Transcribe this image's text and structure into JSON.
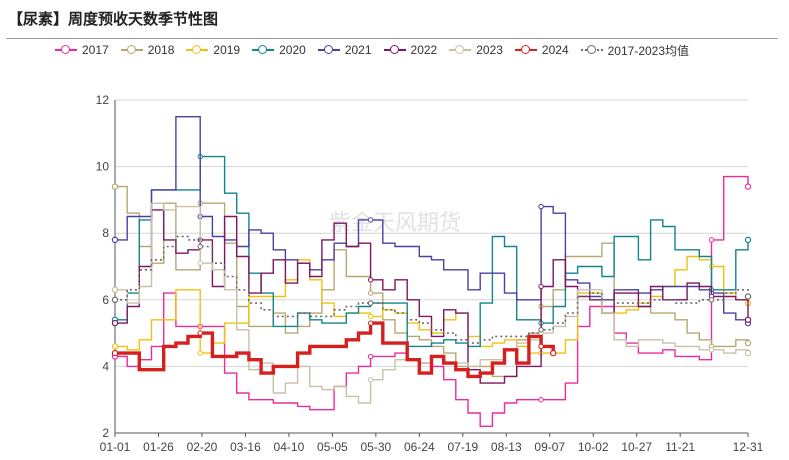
{
  "title": "【尿素】周度预收天数季节性图",
  "watermark": "紫金天风期货",
  "chart_data": {
    "type": "line",
    "title": "【尿素】周度预收天数季节性图",
    "xlabel": "",
    "ylabel": "",
    "ylim": [
      2,
      12
    ],
    "yticks": [
      2,
      4,
      6,
      8,
      10,
      12
    ],
    "x_categories": [
      "01-01",
      "01-26",
      "02-20",
      "03-16",
      "04-10",
      "05-05",
      "05-30",
      "06-24",
      "07-19",
      "08-13",
      "09-07",
      "10-02",
      "10-27",
      "11-21",
      "12-31"
    ],
    "x_note": "x values are day-of-year (Jan 1 = 0, Dec 31 = 364)",
    "series": [
      {
        "name": "2017",
        "color": "#ee2a9c",
        "width": 1.4,
        "dash": false,
        "x": [
          0,
          7,
          14,
          21,
          28,
          35,
          42,
          49,
          56,
          63,
          70,
          77,
          84,
          91,
          98,
          105,
          112,
          119,
          126,
          133,
          140,
          147,
          154,
          161,
          168,
          175,
          182,
          189,
          196,
          203,
          210,
          217,
          224,
          231,
          238,
          245,
          252,
          259,
          266,
          273,
          280,
          287,
          294,
          301,
          308,
          315,
          322,
          329,
          336,
          343,
          350,
          357,
          364
        ],
        "y": [
          4.3,
          4.0,
          4.2,
          4.6,
          6.2,
          5.2,
          5.2,
          5.2,
          5.2,
          3.8,
          3.2,
          3.0,
          3.0,
          2.9,
          2.9,
          2.8,
          2.7,
          2.7,
          3.4,
          3.8,
          4.0,
          4.3,
          4.3,
          4.4,
          4.2,
          4.1,
          4.0,
          3.6,
          3.0,
          2.6,
          2.2,
          2.6,
          2.9,
          3.0,
          3.0,
          3.0,
          3.0,
          3.5,
          5.2,
          5.8,
          5.8,
          5.0,
          4.7,
          4.4,
          4.4,
          4.5,
          4.3,
          4.3,
          4.2,
          7.8,
          9.7,
          9.7,
          9.4
        ]
      },
      {
        "name": "2018",
        "color": "#b7a770",
        "width": 1.4,
        "dash": false,
        "x": [
          0,
          7,
          14,
          21,
          28,
          35,
          42,
          49,
          56,
          63,
          70,
          77,
          84,
          91,
          98,
          105,
          112,
          119,
          126,
          133,
          140,
          147,
          154,
          161,
          168,
          175,
          182,
          189,
          196,
          203,
          210,
          217,
          224,
          231,
          238,
          245,
          252,
          259,
          266,
          273,
          280,
          287,
          294,
          301,
          308,
          315,
          322,
          329,
          336,
          343,
          350,
          357,
          364
        ],
        "y": [
          9.4,
          8.6,
          7.6,
          7.1,
          8.9,
          6.9,
          6.9,
          8.9,
          8.9,
          7.7,
          5.8,
          5.2,
          5.2,
          5.6,
          5.0,
          5.2,
          5.6,
          6.3,
          7.5,
          6.7,
          6.7,
          6.2,
          5.4,
          5.0,
          4.9,
          4.8,
          4.6,
          4.4,
          4.0,
          4.0,
          4.0,
          3.7,
          3.7,
          4.8,
          5.0,
          5.8,
          6.3,
          7.3,
          7.3,
          7.3,
          7.7,
          5.8,
          5.8,
          5.8,
          5.6,
          5.6,
          5.4,
          5.0,
          4.8,
          4.6,
          4.6,
          4.8,
          4.7
        ]
      },
      {
        "name": "2019",
        "color": "#f0c20f",
        "width": 1.4,
        "dash": false,
        "x": [
          0,
          7,
          14,
          21,
          28,
          35,
          42,
          49,
          56,
          63,
          70,
          77,
          84,
          91,
          98,
          105,
          112,
          119,
          126,
          133,
          140,
          147,
          154,
          161,
          168,
          175,
          182,
          189,
          196,
          203,
          210,
          217,
          224,
          231,
          238,
          245,
          252,
          259,
          266,
          273,
          280,
          287,
          294,
          301,
          308,
          315,
          322,
          329,
          336,
          343,
          350,
          357,
          364
        ],
        "y": [
          4.6,
          4.5,
          4.8,
          5.4,
          5.4,
          6.3,
          6.3,
          4.4,
          4.7,
          5.3,
          5.3,
          6.1,
          6.1,
          6.1,
          6.6,
          7.2,
          6.6,
          5.9,
          5.5,
          5.6,
          5.6,
          5.5,
          5.7,
          5.6,
          5.3,
          5.1,
          5.0,
          5.4,
          5.6,
          4.9,
          4.6,
          4.7,
          4.8,
          4.6,
          4.4,
          4.4,
          4.4,
          4.8,
          6.2,
          6.2,
          5.6,
          5.6,
          5.7,
          5.9,
          6.1,
          6.4,
          6.9,
          7.3,
          7.2,
          7.0,
          6.2,
          6.0,
          5.9
        ]
      },
      {
        "name": "2020",
        "color": "#12868c",
        "width": 1.4,
        "dash": false,
        "x": [
          0,
          7,
          14,
          21,
          28,
          35,
          42,
          49,
          56,
          63,
          70,
          77,
          84,
          91,
          98,
          105,
          112,
          119,
          126,
          133,
          140,
          147,
          154,
          161,
          168,
          175,
          182,
          189,
          196,
          203,
          210,
          217,
          224,
          231,
          238,
          245,
          252,
          259,
          266,
          273,
          280,
          287,
          294,
          301,
          308,
          315,
          322,
          329,
          336,
          343,
          350,
          357,
          364
        ],
        "y": [
          5.4,
          6.2,
          8.4,
          9.3,
          9.3,
          9.3,
          9.3,
          10.3,
          10.3,
          9.2,
          8.6,
          6.8,
          6.2,
          5.2,
          5.2,
          5.6,
          5.4,
          5.3,
          5.3,
          5.6,
          5.8,
          5.9,
          5.9,
          5.9,
          4.6,
          4.6,
          4.7,
          4.8,
          4.7,
          4.6,
          5.9,
          7.9,
          7.6,
          5.4,
          5.4,
          5.3,
          5.8,
          6.8,
          7.0,
          7.0,
          6.7,
          7.9,
          7.9,
          7.2,
          8.4,
          8.2,
          7.5,
          7.5,
          7.3,
          6.3,
          6.3,
          7.5,
          7.8
        ]
      },
      {
        "name": "2021",
        "color": "#4d3fa2",
        "width": 1.4,
        "dash": false,
        "x": [
          0,
          7,
          14,
          21,
          28,
          35,
          42,
          49,
          56,
          63,
          70,
          77,
          84,
          91,
          98,
          105,
          112,
          119,
          126,
          133,
          140,
          147,
          154,
          161,
          168,
          175,
          182,
          189,
          196,
          203,
          210,
          217,
          224,
          231,
          238,
          245,
          252,
          259,
          266,
          273,
          280,
          287,
          294,
          301,
          308,
          315,
          322,
          329,
          336,
          343,
          350,
          357,
          364
        ],
        "y": [
          7.8,
          8.5,
          8.5,
          9.3,
          9.3,
          11.5,
          11.5,
          8.5,
          7.9,
          7.8,
          7.6,
          8.1,
          8.0,
          7.5,
          7.2,
          7.1,
          6.9,
          7.2,
          7.7,
          7.6,
          8.4,
          8.4,
          7.7,
          7.6,
          7.6,
          7.3,
          7.2,
          6.9,
          6.9,
          6.3,
          6.8,
          6.8,
          6.2,
          6.0,
          6.0,
          8.8,
          8.6,
          6.6,
          6.5,
          6.1,
          6.0,
          6.3,
          6.3,
          6.2,
          6.3,
          6.4,
          6.4,
          6.4,
          6.3,
          6.2,
          5.6,
          5.4,
          5.3
        ]
      },
      {
        "name": "2022",
        "color": "#7e1661",
        "width": 1.4,
        "dash": false,
        "x": [
          0,
          7,
          14,
          21,
          28,
          35,
          42,
          49,
          56,
          63,
          70,
          77,
          84,
          91,
          98,
          105,
          112,
          119,
          126,
          133,
          140,
          147,
          154,
          161,
          168,
          175,
          182,
          189,
          196,
          203,
          210,
          217,
          224,
          231,
          238,
          245,
          252,
          259,
          266,
          273,
          280,
          287,
          294,
          301,
          308,
          315,
          322,
          329,
          336,
          343,
          350,
          357,
          364
        ],
        "y": [
          5.3,
          5.8,
          7.0,
          8.7,
          7.8,
          7.4,
          7.5,
          7.8,
          6.4,
          8.5,
          7.3,
          6.2,
          6.8,
          7.2,
          6.5,
          7.1,
          6.7,
          7.8,
          8.3,
          7.6,
          7.7,
          6.6,
          6.3,
          6.6,
          6.0,
          5.5,
          4.9,
          5.7,
          5.6,
          3.9,
          3.5,
          3.5,
          3.7,
          4.0,
          4.0,
          6.4,
          7.2,
          6.4,
          6.1,
          6.0,
          5.6,
          6.2,
          6.2,
          5.8,
          6.4,
          6.0,
          6.0,
          6.5,
          6.4,
          6.1,
          6.1,
          6.0,
          5.4
        ]
      },
      {
        "name": "2023",
        "color": "#c9c0a8",
        "width": 1.4,
        "dash": false,
        "x": [
          0,
          7,
          14,
          21,
          28,
          35,
          42,
          49,
          56,
          63,
          70,
          77,
          84,
          91,
          98,
          105,
          112,
          119,
          126,
          133,
          140,
          147,
          154,
          161,
          168,
          175,
          182,
          189,
          196,
          203,
          210,
          217,
          224,
          231,
          238,
          245,
          252,
          259,
          266,
          273,
          280,
          287,
          294,
          301,
          308,
          315,
          322,
          329,
          336,
          343,
          350,
          357,
          364
        ],
        "y": [
          6.3,
          5.9,
          6.4,
          8.9,
          8.7,
          8.8,
          8.8,
          7.1,
          6.9,
          6.3,
          5.1,
          3.9,
          4.1,
          3.2,
          3.5,
          4.0,
          3.4,
          3.3,
          3.4,
          3.1,
          2.9,
          3.6,
          3.9,
          4.2,
          4.2,
          4.1,
          4.3,
          4.1,
          4.1,
          4.0,
          4.2,
          4.2,
          4.5,
          4.7,
          4.8,
          5.0,
          5.2,
          5.5,
          6.3,
          6.3,
          5.6,
          4.8,
          4.6,
          4.8,
          4.8,
          4.7,
          4.6,
          4.6,
          4.5,
          4.5,
          4.4,
          4.5,
          4.4
        ]
      },
      {
        "name": "2024",
        "color": "#d61f1f",
        "width": 3.4,
        "dash": false,
        "x": [
          0,
          7,
          14,
          21,
          28,
          35,
          42,
          49,
          56,
          63,
          70,
          77,
          84,
          91,
          98,
          105,
          112,
          119,
          126,
          133,
          140,
          147,
          154,
          161,
          168,
          175,
          182,
          189,
          196,
          203,
          210,
          217,
          224,
          231,
          238,
          245,
          252
        ],
        "y": [
          4.4,
          4.4,
          3.9,
          3.9,
          4.6,
          4.7,
          4.9,
          5.0,
          4.3,
          4.3,
          4.4,
          4.2,
          3.8,
          4.0,
          4.0,
          4.4,
          4.6,
          4.6,
          4.6,
          4.8,
          5.0,
          5.3,
          4.7,
          4.7,
          4.2,
          3.8,
          4.3,
          4.1,
          3.9,
          3.7,
          3.8,
          4.1,
          4.5,
          4.1,
          4.9,
          4.6,
          4.4
        ]
      },
      {
        "name": "2017-2023均值",
        "color": "#6b6b6b",
        "width": 1.6,
        "dash": true,
        "x": [
          0,
          7,
          14,
          21,
          28,
          35,
          42,
          49,
          56,
          63,
          70,
          77,
          84,
          91,
          98,
          105,
          112,
          119,
          126,
          133,
          140,
          147,
          154,
          161,
          168,
          175,
          182,
          189,
          196,
          203,
          210,
          217,
          224,
          231,
          238,
          245,
          252,
          259,
          266,
          273,
          280,
          287,
          294,
          301,
          308,
          315,
          322,
          329,
          336,
          343,
          350,
          357,
          364
        ],
        "y": [
          6.0,
          6.3,
          6.9,
          7.2,
          7.6,
          7.9,
          7.8,
          7.6,
          7.1,
          6.7,
          6.3,
          5.9,
          5.7,
          5.5,
          5.5,
          5.6,
          5.5,
          5.5,
          5.7,
          5.8,
          5.9,
          5.9,
          5.7,
          5.6,
          5.4,
          5.3,
          5.1,
          5.0,
          4.8,
          4.7,
          4.8,
          4.9,
          4.9,
          4.9,
          5.0,
          5.1,
          5.3,
          5.6,
          6.1,
          6.2,
          6.0,
          5.9,
          5.9,
          5.9,
          6.0,
          6.0,
          5.9,
          5.9,
          6.0,
          6.0,
          6.2,
          6.3,
          6.1
        ]
      }
    ],
    "legend": {
      "position": "top",
      "entries": [
        "2017",
        "2018",
        "2019",
        "2020",
        "2021",
        "2022",
        "2023",
        "2024",
        "2017-2023均值"
      ]
    }
  }
}
